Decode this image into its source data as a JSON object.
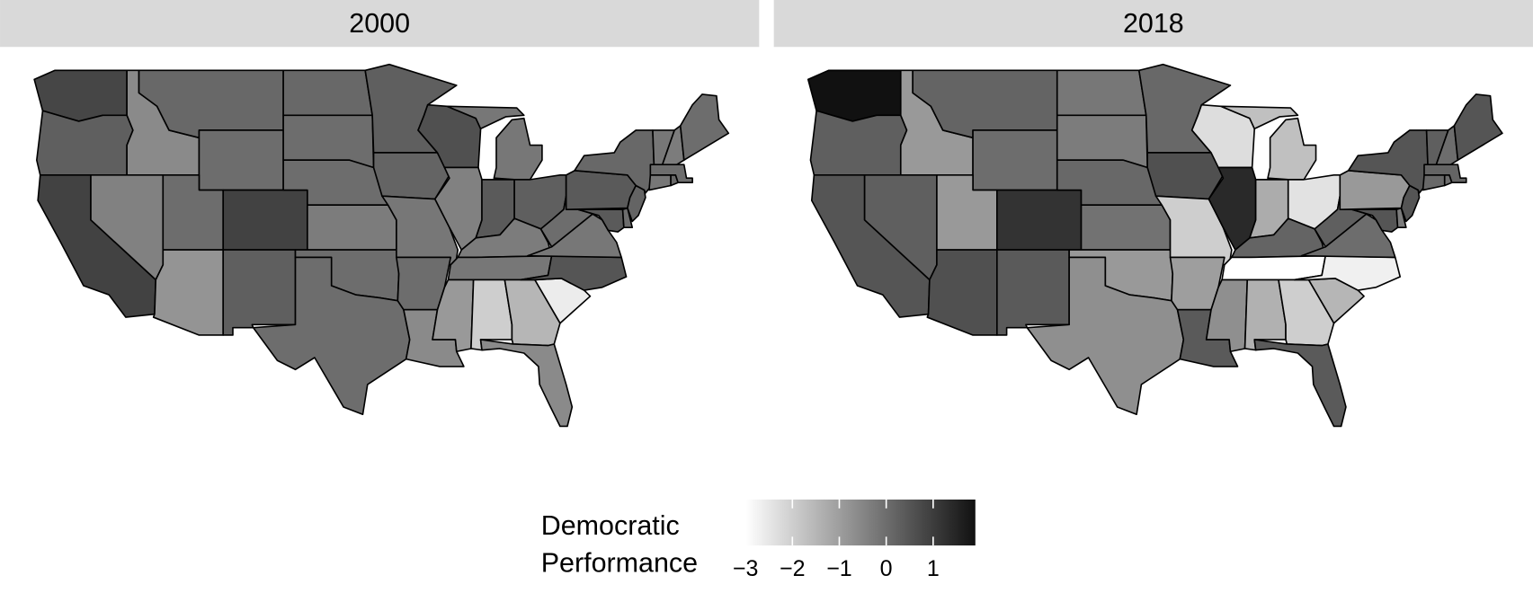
{
  "chart_data": {
    "type": "choropleth",
    "facets": [
      {
        "title": "2000",
        "values": [
          0.8,
          0.3,
          0.9,
          -0.6,
          -0.4,
          0.1,
          0,
          0,
          -0.8,
          0.9,
          0.3,
          0.1,
          0,
          0,
          -0.3,
          0,
          0,
          0.3,
          0.2,
          -0.2,
          0,
          -0.6,
          0.6,
          -0.4,
          0.4,
          -0.2,
          0.3,
          -0.3,
          -0.2,
          -0.9,
          -2.0,
          -1.5,
          -0.6,
          -2.6,
          0.5,
          -0.2,
          0,
          0.4,
          0,
          0.4,
          0.2,
          0.1,
          -0.2,
          0.1,
          0,
          -0.2,
          -0.3,
          0
        ]
      },
      {
        "title": "2018",
        "values": [
          1.9,
          0.3,
          0.5,
          -0.9,
          0.3,
          0.2,
          0,
          -0.9,
          0.6,
          1.2,
          0.4,
          -0.2,
          -0.3,
          0.1,
          -0.1,
          -0.9,
          -0.7,
          0.1,
          0.6,
          -2.0,
          -1.0,
          0.4,
          -2.3,
          1.4,
          -1.3,
          -1.7,
          -2.4,
          0.2,
          -3.0,
          -0.7,
          -1.4,
          -2.0,
          0.4,
          -1.5,
          -2.7,
          0,
          0.3,
          0.5,
          -0.3,
          -0.9,
          0.5,
          0.5,
          0.1,
          0,
          0.2,
          0.3,
          0,
          0.5
        ]
      }
    ],
    "legend_title": "Democratic Performance",
    "colorbar": {
      "lim": [
        -3,
        1.9
      ],
      "colors": [
        "#ffffff",
        "#111111"
      ],
      "ticks": [
        {
          "value": -3,
          "label": "−3"
        },
        {
          "value": -2,
          "label": "−2"
        },
        {
          "value": -1,
          "label": "−1"
        },
        0,
        1
      ]
    }
  }
}
